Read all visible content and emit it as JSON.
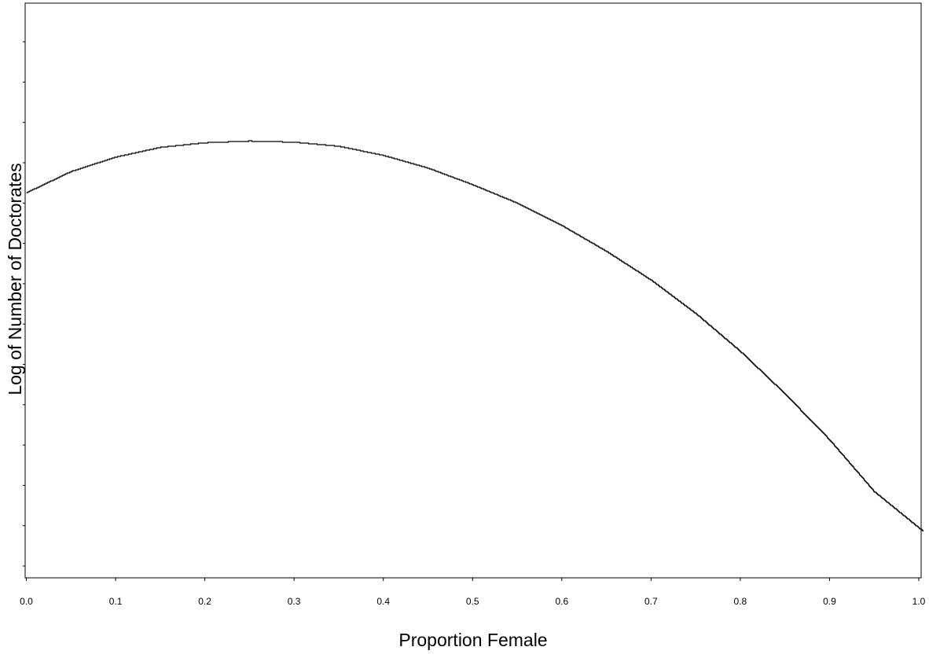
{
  "chart_data": {
    "type": "line",
    "title": "",
    "xlabel": "Proportion Female",
    "ylabel": "Log of Number of Doctorates",
    "xlim": [
      0.0,
      1.005
    ],
    "x_ticks": [
      "0.0",
      "0.1",
      "0.2",
      "0.3",
      "0.4",
      "0.5",
      "0.6",
      "0.7",
      "0.8",
      "0.9",
      "1.0"
    ],
    "y_ticks_labeled": false,
    "grid": false,
    "legend": "none",
    "series": [
      {
        "style": "step",
        "color": "#000000",
        "x": [
          0.0,
          0.05,
          0.1,
          0.15,
          0.2,
          0.25,
          0.3,
          0.35,
          0.4,
          0.45,
          0.5,
          0.55,
          0.6,
          0.65,
          0.7,
          0.75,
          0.8,
          0.85,
          0.9,
          0.95,
          1.0,
          1.005
        ],
        "y": [
          0.67,
          0.707,
          0.732,
          0.749,
          0.757,
          0.76,
          0.758,
          0.751,
          0.735,
          0.713,
          0.684,
          0.652,
          0.613,
          0.568,
          0.518,
          0.46,
          0.394,
          0.32,
          0.24,
          0.15,
          0.087,
          0.081
        ]
      }
    ]
  }
}
